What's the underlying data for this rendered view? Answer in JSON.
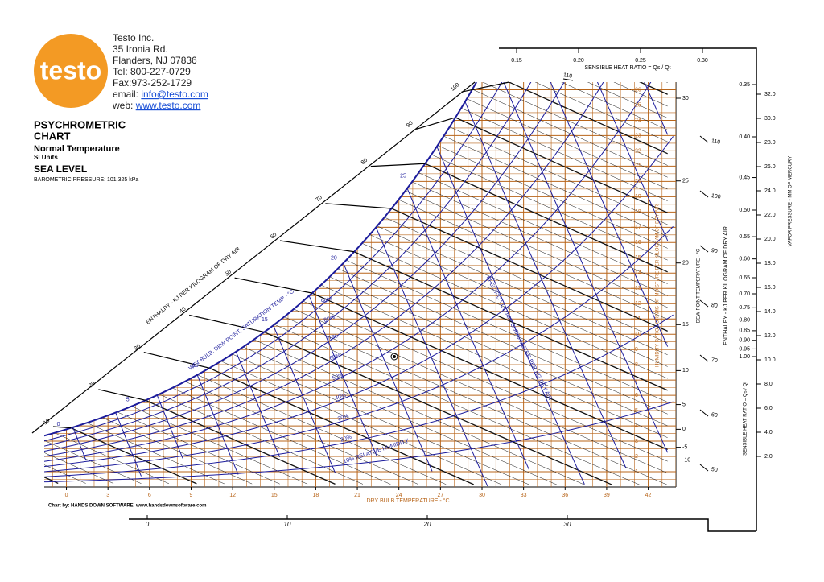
{
  "company": {
    "logo": "testo",
    "name": "Testo Inc.",
    "address": "35 Ironia Rd.",
    "city": "Flanders, NJ  07836",
    "tel": "Tel: 800-227-0729",
    "fax": "Fax:973-252-1729",
    "email_label": "email: ",
    "email": "info@testo.com",
    "web_label": "web: ",
    "web": "www.testo.com"
  },
  "heading": {
    "line1": "PSYCHROMETRIC",
    "line2": "CHART",
    "subtitle": "Normal Temperature",
    "units": "SI Units",
    "altitude": "SEA LEVEL",
    "pressure": "BAROMETRIC PRESSURE: 101.325 kPa"
  },
  "chart_data": {
    "type": "psychrometric",
    "x_label": "DRY BULB TEMPERATURE - °C",
    "xlim": [
      -1.6,
      44
    ],
    "xticks": [
      0,
      3,
      6,
      9,
      12,
      15,
      18,
      21,
      24,
      27,
      30,
      33,
      36,
      39,
      42
    ],
    "y_label": "HUMIDITY RATIO - GRAMS OF MOISTURE PER KILOGRAM OF DRY AIR",
    "ylim": [
      0,
      26.5
    ],
    "yticks": [
      1,
      2,
      3,
      4,
      5,
      6,
      7,
      8,
      9,
      10,
      11,
      12,
      13,
      14,
      15,
      16,
      17,
      18,
      19,
      20,
      21,
      22,
      23,
      24,
      25,
      26
    ],
    "saturation_label": "WET BULB, DEW POINT, SATURATION TEMP - °C",
    "wet_bulb_ticks": [
      0,
      5,
      10,
      15,
      20,
      25
    ],
    "rh": [
      {
        "value": 10,
        "label": "10% RELATIVE HUMIDITY"
      },
      {
        "value": 20,
        "label": "20%"
      },
      {
        "value": 30,
        "label": "30%"
      },
      {
        "value": 40,
        "label": "40%"
      },
      {
        "value": 50,
        "label": "50%"
      },
      {
        "value": 60,
        "label": "60%"
      },
      {
        "value": 70,
        "label": "70%"
      },
      {
        "value": 80,
        "label": "80%"
      },
      {
        "value": 90,
        "label": "90%"
      }
    ],
    "enthalpy_label": "ENTHALPY - KJ PER KILOGRAM OF DRY AIR",
    "enthalpy_ticks": [
      10,
      20,
      30,
      40,
      50,
      60,
      70,
      80,
      90,
      100,
      110
    ],
    "enthalpy_right_ticks": [
      50,
      60,
      70,
      80,
      90,
      100,
      110
    ],
    "dew_point_label": "DEW POINT TEMPERATURE - °C",
    "dew_point_ticks": [
      -10,
      -5,
      0,
      5,
      10,
      15,
      20,
      25,
      30
    ],
    "volume_label": "SPECIFIC VOLUME CUBIC METER PER KG DRY AIR",
    "shr_label": "SENSIBLE HEAT RATIO = Qs / Qt",
    "shr_top_ticks": [
      0.15,
      {
        "value": 0.2,
        "label": "0.20"
      },
      0.25,
      {
        "value": 0.3,
        "label": "0.30"
      }
    ],
    "shr_right_ticks": [
      0.35,
      {
        "value": 0.4,
        "label": "0.40"
      },
      0.45,
      {
        "value": 0.5,
        "label": "0.50"
      },
      0.55,
      {
        "value": 0.6,
        "label": "0.60"
      },
      0.65,
      {
        "value": 0.7,
        "label": "0.70"
      },
      0.75,
      {
        "value": 0.8,
        "label": "0.80"
      },
      0.85,
      {
        "value": 0.9,
        "label": "0.90"
      },
      0.95,
      {
        "value": 1,
        "label": "1.00"
      }
    ],
    "vapor_pressure_label": "VAPOR PRESSURE - MM OF MERCURY",
    "vapor_pressure_ticks": [
      {
        "value": 2,
        "label": "2.0"
      },
      {
        "value": 4,
        "label": "4.0"
      },
      {
        "value": 6,
        "label": "6.0"
      },
      {
        "value": 8,
        "label": "8.0"
      },
      {
        "value": 10,
        "label": "10.0"
      },
      {
        "value": 12,
        "label": "12.0"
      },
      {
        "value": 14,
        "label": "14.0"
      },
      {
        "value": 16,
        "label": "16.0"
      },
      {
        "value": 18,
        "label": "18.0"
      },
      {
        "value": 20,
        "label": "20.0"
      },
      {
        "value": 22,
        "label": "22.0"
      },
      {
        "value": 24,
        "label": "24.0"
      },
      {
        "value": 26,
        "label": "26.0"
      },
      {
        "value": 28,
        "label": "28.0"
      },
      {
        "value": 30,
        "label": "30.0"
      },
      {
        "value": 32,
        "label": "32.0"
      }
    ],
    "bottom_scale_ticks": [
      0,
      10,
      20,
      30
    ],
    "credit": "Chart by: HANDS DOWN SOFTWARE, www.handsdownsoftware.com"
  }
}
